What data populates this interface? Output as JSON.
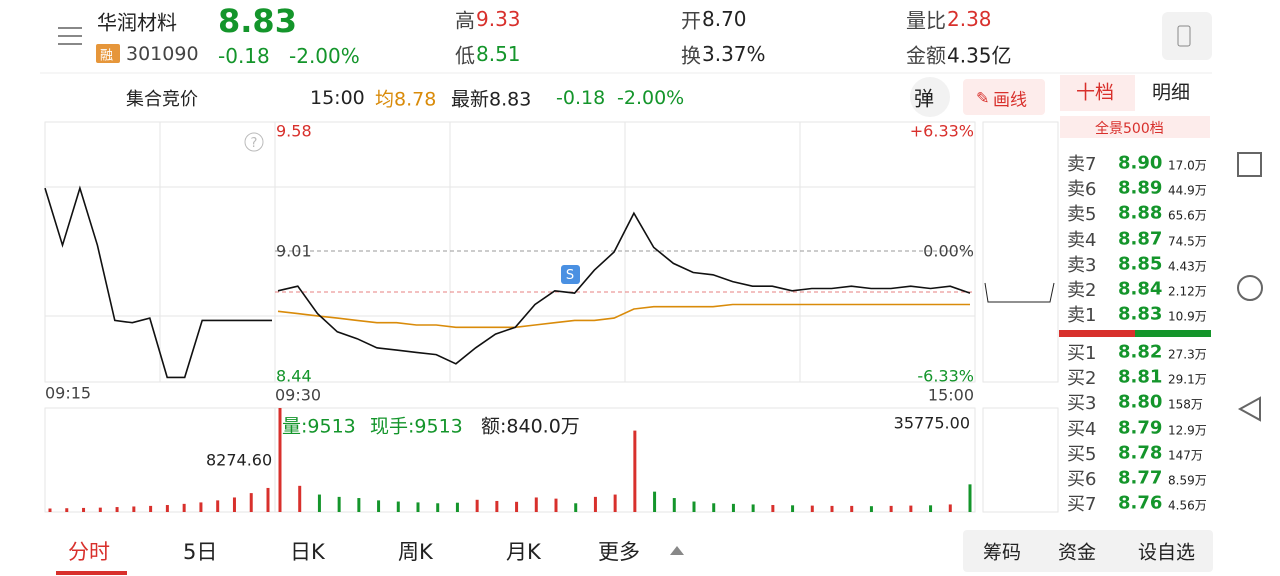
{
  "header": {
    "name": "华润材料",
    "badge": "融",
    "code": "301090",
    "price": "8.83",
    "change": "-0.18",
    "change_pct": "-2.00%",
    "stats": [
      {
        "label": "高",
        "value": "9.33"
      },
      {
        "label": "低",
        "value": "8.51"
      },
      {
        "label": "开",
        "value": "8.70"
      },
      {
        "label": "换",
        "value": "3.37%"
      },
      {
        "label": "量比",
        "value": "2.38"
      },
      {
        "label": "金额",
        "value": "4.35亿"
      }
    ]
  },
  "subbar": {
    "mode": "集合竞价",
    "time": "15:00",
    "avg": "均8.78",
    "latest": "最新8.83",
    "change": "-0.18",
    "change_pct": "-2.00%",
    "popup": "弹",
    "draw": "画线"
  },
  "chart": {
    "ylim": [
      8.44,
      9.58
    ],
    "price_labels": [
      "9.58",
      "9.01",
      "8.44"
    ],
    "pct_labels": [
      "+6.33%",
      "0.00%",
      "-6.33%"
    ],
    "time_labels": [
      "09:15",
      "09:30",
      "15:00"
    ],
    "premarket": [
      9.29,
      9.04,
      9.29,
      9.04,
      8.71,
      8.7,
      8.72,
      8.46,
      8.46,
      8.71,
      8.71,
      8.71,
      8.71,
      8.71
    ],
    "price": [
      8.84,
      8.86,
      8.74,
      8.66,
      8.63,
      8.59,
      8.58,
      8.57,
      8.56,
      8.52,
      8.59,
      8.65,
      8.68,
      8.78,
      8.84,
      8.83,
      8.93,
      9.01,
      9.18,
      9.03,
      8.96,
      8.92,
      8.91,
      8.88,
      8.86,
      8.86,
      8.84,
      8.85,
      8.85,
      8.86,
      8.85,
      8.85,
      8.86,
      8.85,
      8.86,
      8.83
    ],
    "avg": [
      8.75,
      8.74,
      8.73,
      8.72,
      8.71,
      8.7,
      8.7,
      8.69,
      8.69,
      8.68,
      8.68,
      8.68,
      8.68,
      8.69,
      8.7,
      8.71,
      8.71,
      8.72,
      8.76,
      8.77,
      8.77,
      8.77,
      8.77,
      8.78,
      8.78,
      8.78,
      8.78,
      8.78,
      8.78,
      8.78,
      8.78,
      8.78,
      8.78,
      8.78,
      8.78,
      8.78
    ]
  },
  "volume": {
    "vmax": 35775,
    "labels": {
      "volume": "量:9513",
      "hand": "现手:9513",
      "amount": "额:840.0万",
      "max": "35775.00",
      "pre_max": "8274.60"
    },
    "premarket": [
      1200,
      1300,
      1400,
      1500,
      1700,
      1900,
      2100,
      2400,
      2800,
      3300,
      4000,
      5000,
      6500,
      8274.6
    ],
    "bars": [
      35775,
      9000,
      6000,
      5200,
      4800,
      4000,
      3600,
      3300,
      3000,
      3200,
      4200,
      3800,
      3500,
      5000,
      4600,
      3000,
      5200,
      6000,
      28000,
      7000,
      4800,
      3600,
      3000,
      2800,
      2600,
      2400,
      2300,
      2200,
      2100,
      2100,
      2000,
      2100,
      2200,
      2300,
      2600,
      9513
    ]
  },
  "order_book": {
    "tabs": [
      "十档",
      "明细"
    ],
    "panorama": "全景500档",
    "asks": [
      {
        "label": "卖7",
        "price": "8.90",
        "volume": "17.0万"
      },
      {
        "label": "卖6",
        "price": "8.89",
        "volume": "44.9万"
      },
      {
        "label": "卖5",
        "price": "8.88",
        "volume": "65.6万"
      },
      {
        "label": "卖4",
        "price": "8.87",
        "volume": "74.5万"
      },
      {
        "label": "卖3",
        "price": "8.85",
        "volume": "4.43万"
      },
      {
        "label": "卖2",
        "price": "8.84",
        "volume": "2.12万"
      },
      {
        "label": "卖1",
        "price": "8.83",
        "volume": "10.9万"
      }
    ],
    "bids": [
      {
        "label": "买1",
        "price": "8.82",
        "volume": "27.3万"
      },
      {
        "label": "买2",
        "price": "8.81",
        "volume": "29.1万"
      },
      {
        "label": "买3",
        "price": "8.80",
        "volume": "158万"
      },
      {
        "label": "买4",
        "price": "8.79",
        "volume": "12.9万"
      },
      {
        "label": "买5",
        "price": "8.78",
        "volume": "147万"
      },
      {
        "label": "买6",
        "price": "8.77",
        "volume": "8.59万"
      },
      {
        "label": "买7",
        "price": "8.76",
        "volume": "4.56万"
      }
    ]
  },
  "bottom": {
    "tabs": [
      "分时",
      "5日",
      "日K",
      "周K",
      "月K",
      "更多"
    ],
    "buttons": [
      "筹码",
      "资金",
      "设自选"
    ]
  }
}
